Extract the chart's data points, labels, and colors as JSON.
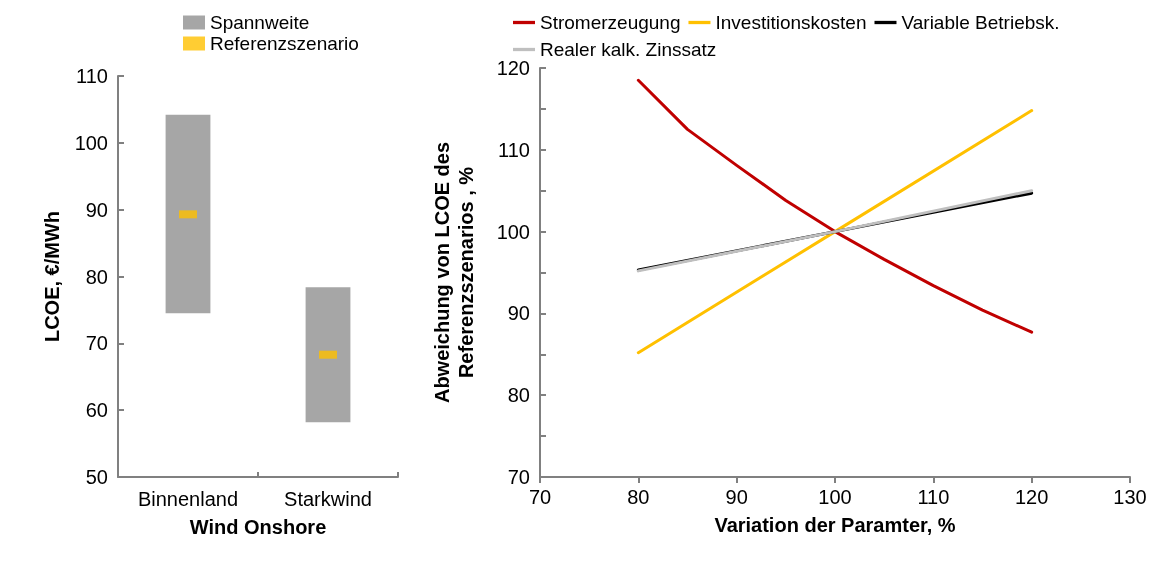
{
  "chart_data": [
    {
      "type": "bar",
      "categories": [
        "Binnenland",
        "Starkwind"
      ],
      "xlabel": "Wind Onshore",
      "ylabel": "LCOE, €/MWh",
      "ylim": [
        50,
        110
      ],
      "yticks": [
        50,
        60,
        70,
        80,
        90,
        100,
        110
      ],
      "grid": false,
      "legend": "top",
      "series": [
        {
          "name": "Spannweite",
          "color": "#a6a6a6",
          "values": [
            29.7,
            20.2
          ],
          "base": [
            74.5,
            58.2
          ]
        },
        {
          "name": "Referenzszenario",
          "type": "scatter",
          "marker": "square",
          "color": "#ffc000",
          "x": [
            "Binnenland",
            "Starkwind"
          ],
          "values": [
            89.3,
            68.3
          ]
        }
      ]
    },
    {
      "type": "line",
      "xlabel": "Variation der Paramter, %",
      "ylabel": "Abweichung von LCOE des\nReferenzszenarios , %",
      "xlim": [
        70,
        130
      ],
      "xticks": [
        70,
        80,
        90,
        100,
        110,
        120,
        130
      ],
      "ylim": [
        70,
        120
      ],
      "yticks": [
        70,
        {
          "value": 75,
          "label": null
        },
        80,
        {
          "value": 85,
          "label": null
        },
        90,
        {
          "value": 95,
          "label": null
        },
        100,
        {
          "value": 105,
          "label": null
        },
        110,
        {
          "value": 115,
          "label": null
        },
        120
      ],
      "grid": false,
      "legend": "top",
      "line_style": "solid",
      "series": [
        {
          "name": "Stromerzeugung",
          "color": "#c00000",
          "x": [
            80,
            85,
            90,
            95,
            100,
            105,
            110,
            115,
            120
          ],
          "values": [
            118.5,
            112.5,
            108.1,
            103.8,
            100,
            96.6,
            93.4,
            90.4,
            87.7
          ]
        },
        {
          "name": "Investitionskosten",
          "color": "#ffc000",
          "x": [
            80,
            100,
            120
          ],
          "values": [
            85.2,
            100,
            114.8
          ]
        },
        {
          "name": "Variable Betriebsk.",
          "color": "#000000",
          "x": [
            80,
            100,
            120
          ],
          "values": [
            95.3,
            100,
            104.7
          ]
        },
        {
          "name": "Realer kalk. Zinssatz",
          "color": "#bfbfbf",
          "x": [
            80,
            100,
            120
          ],
          "values": [
            95.2,
            100,
            105
          ]
        }
      ]
    }
  ]
}
